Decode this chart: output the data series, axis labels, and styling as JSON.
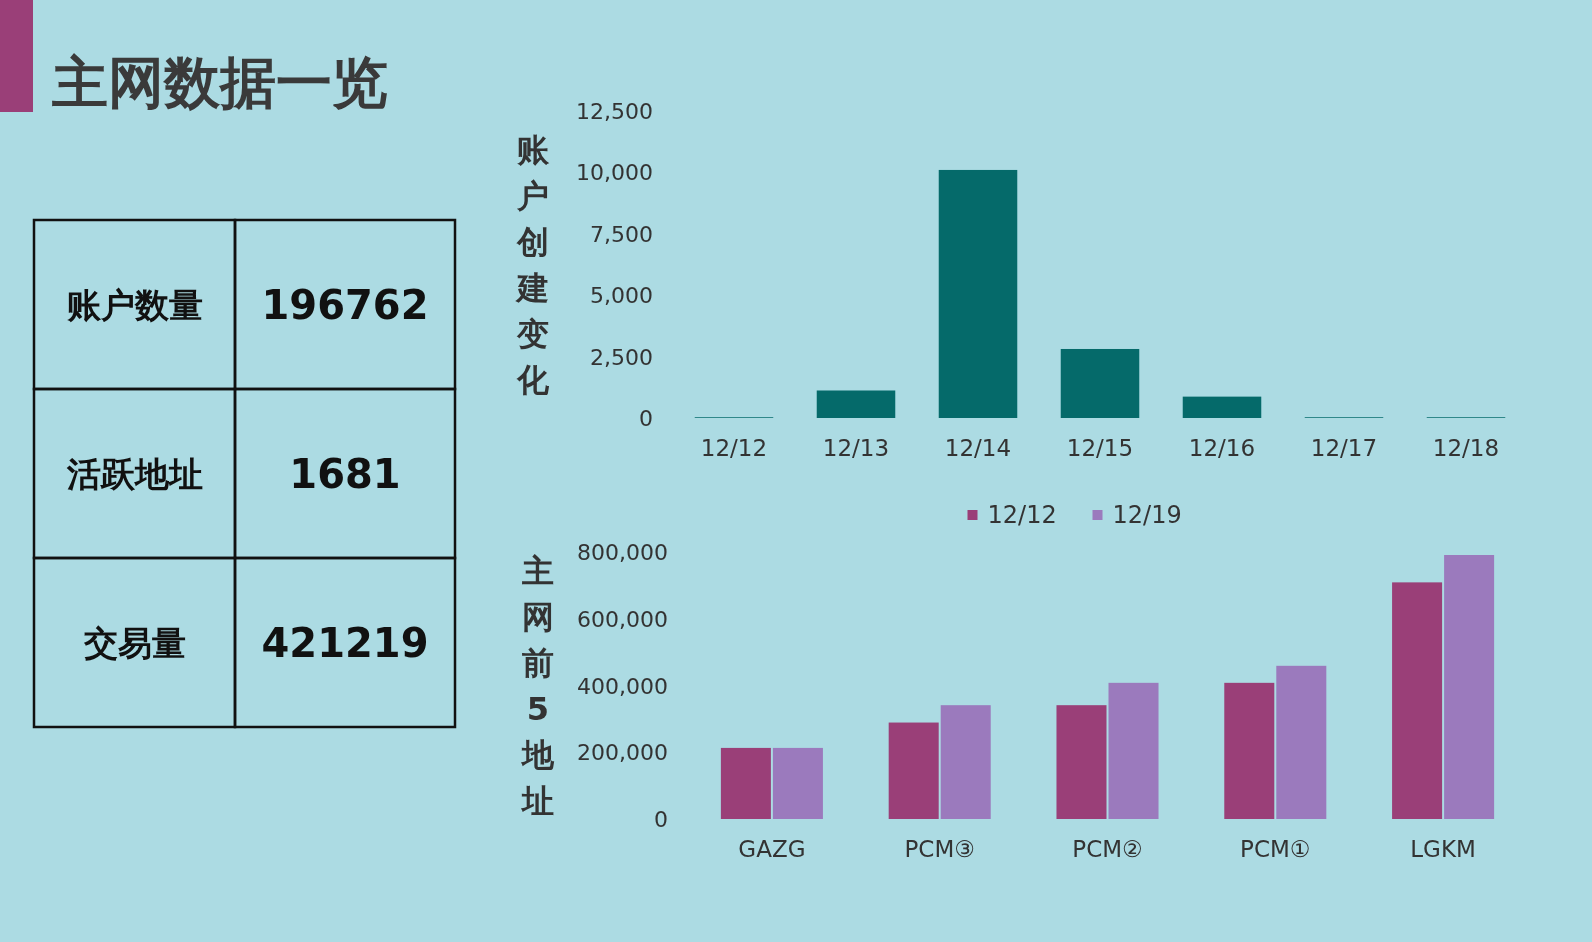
{
  "chart_data": [
    {
      "type": "other",
      "title": "主网数据一览",
      "categories": [
        "账户数量",
        "活跃地址",
        "交易量"
      ],
      "values": [
        196762,
        1681,
        421219
      ],
      "data_labels": true
    },
    {
      "type": "bar",
      "ylabel": "账户创建变化",
      "categories": [
        "12/12",
        "12/13",
        "12/14",
        "12/15",
        "12/16",
        "12/17",
        "12/18"
      ],
      "series": [
        {
          "color": "#056a6a",
          "values": [
            30,
            1120,
            10100,
            2810,
            870,
            30,
            30
          ]
        }
      ],
      "ylim": [
        0,
        12500
      ],
      "yticks": [
        0,
        {
          "value": 2500,
          "label": "2,500"
        },
        {
          "value": 5000,
          "label": "5,000"
        },
        {
          "value": 7500,
          "label": "7,500"
        },
        {
          "value": 10000,
          "label": "10,000"
        },
        {
          "value": 12500,
          "label": "12,500"
        }
      ],
      "grid": false,
      "legend": false
    },
    {
      "type": "bar",
      "ylabel": "主网前5地址",
      "categories": [
        "GAZG",
        "PCM③",
        "PCM②",
        "PCM①",
        "LGKM"
      ],
      "series": [
        {
          "name": "12/12",
          "color": "#9a3f78",
          "values": [
            213000,
            289000,
            341000,
            408000,
            709000
          ]
        },
        {
          "name": "12/19",
          "color": "#9b7abd",
          "values": [
            213000,
            341000,
            408000,
            459000,
            791000
          ]
        }
      ],
      "ylim": [
        0,
        800000
      ],
      "yticks": [
        0,
        {
          "value": 200000,
          "label": "200,000"
        },
        {
          "value": 400000,
          "label": "400,000"
        },
        {
          "value": 600000,
          "label": "600,000"
        },
        {
          "value": 800000,
          "label": "800,000"
        }
      ],
      "grid": false,
      "legend": "top"
    }
  ]
}
